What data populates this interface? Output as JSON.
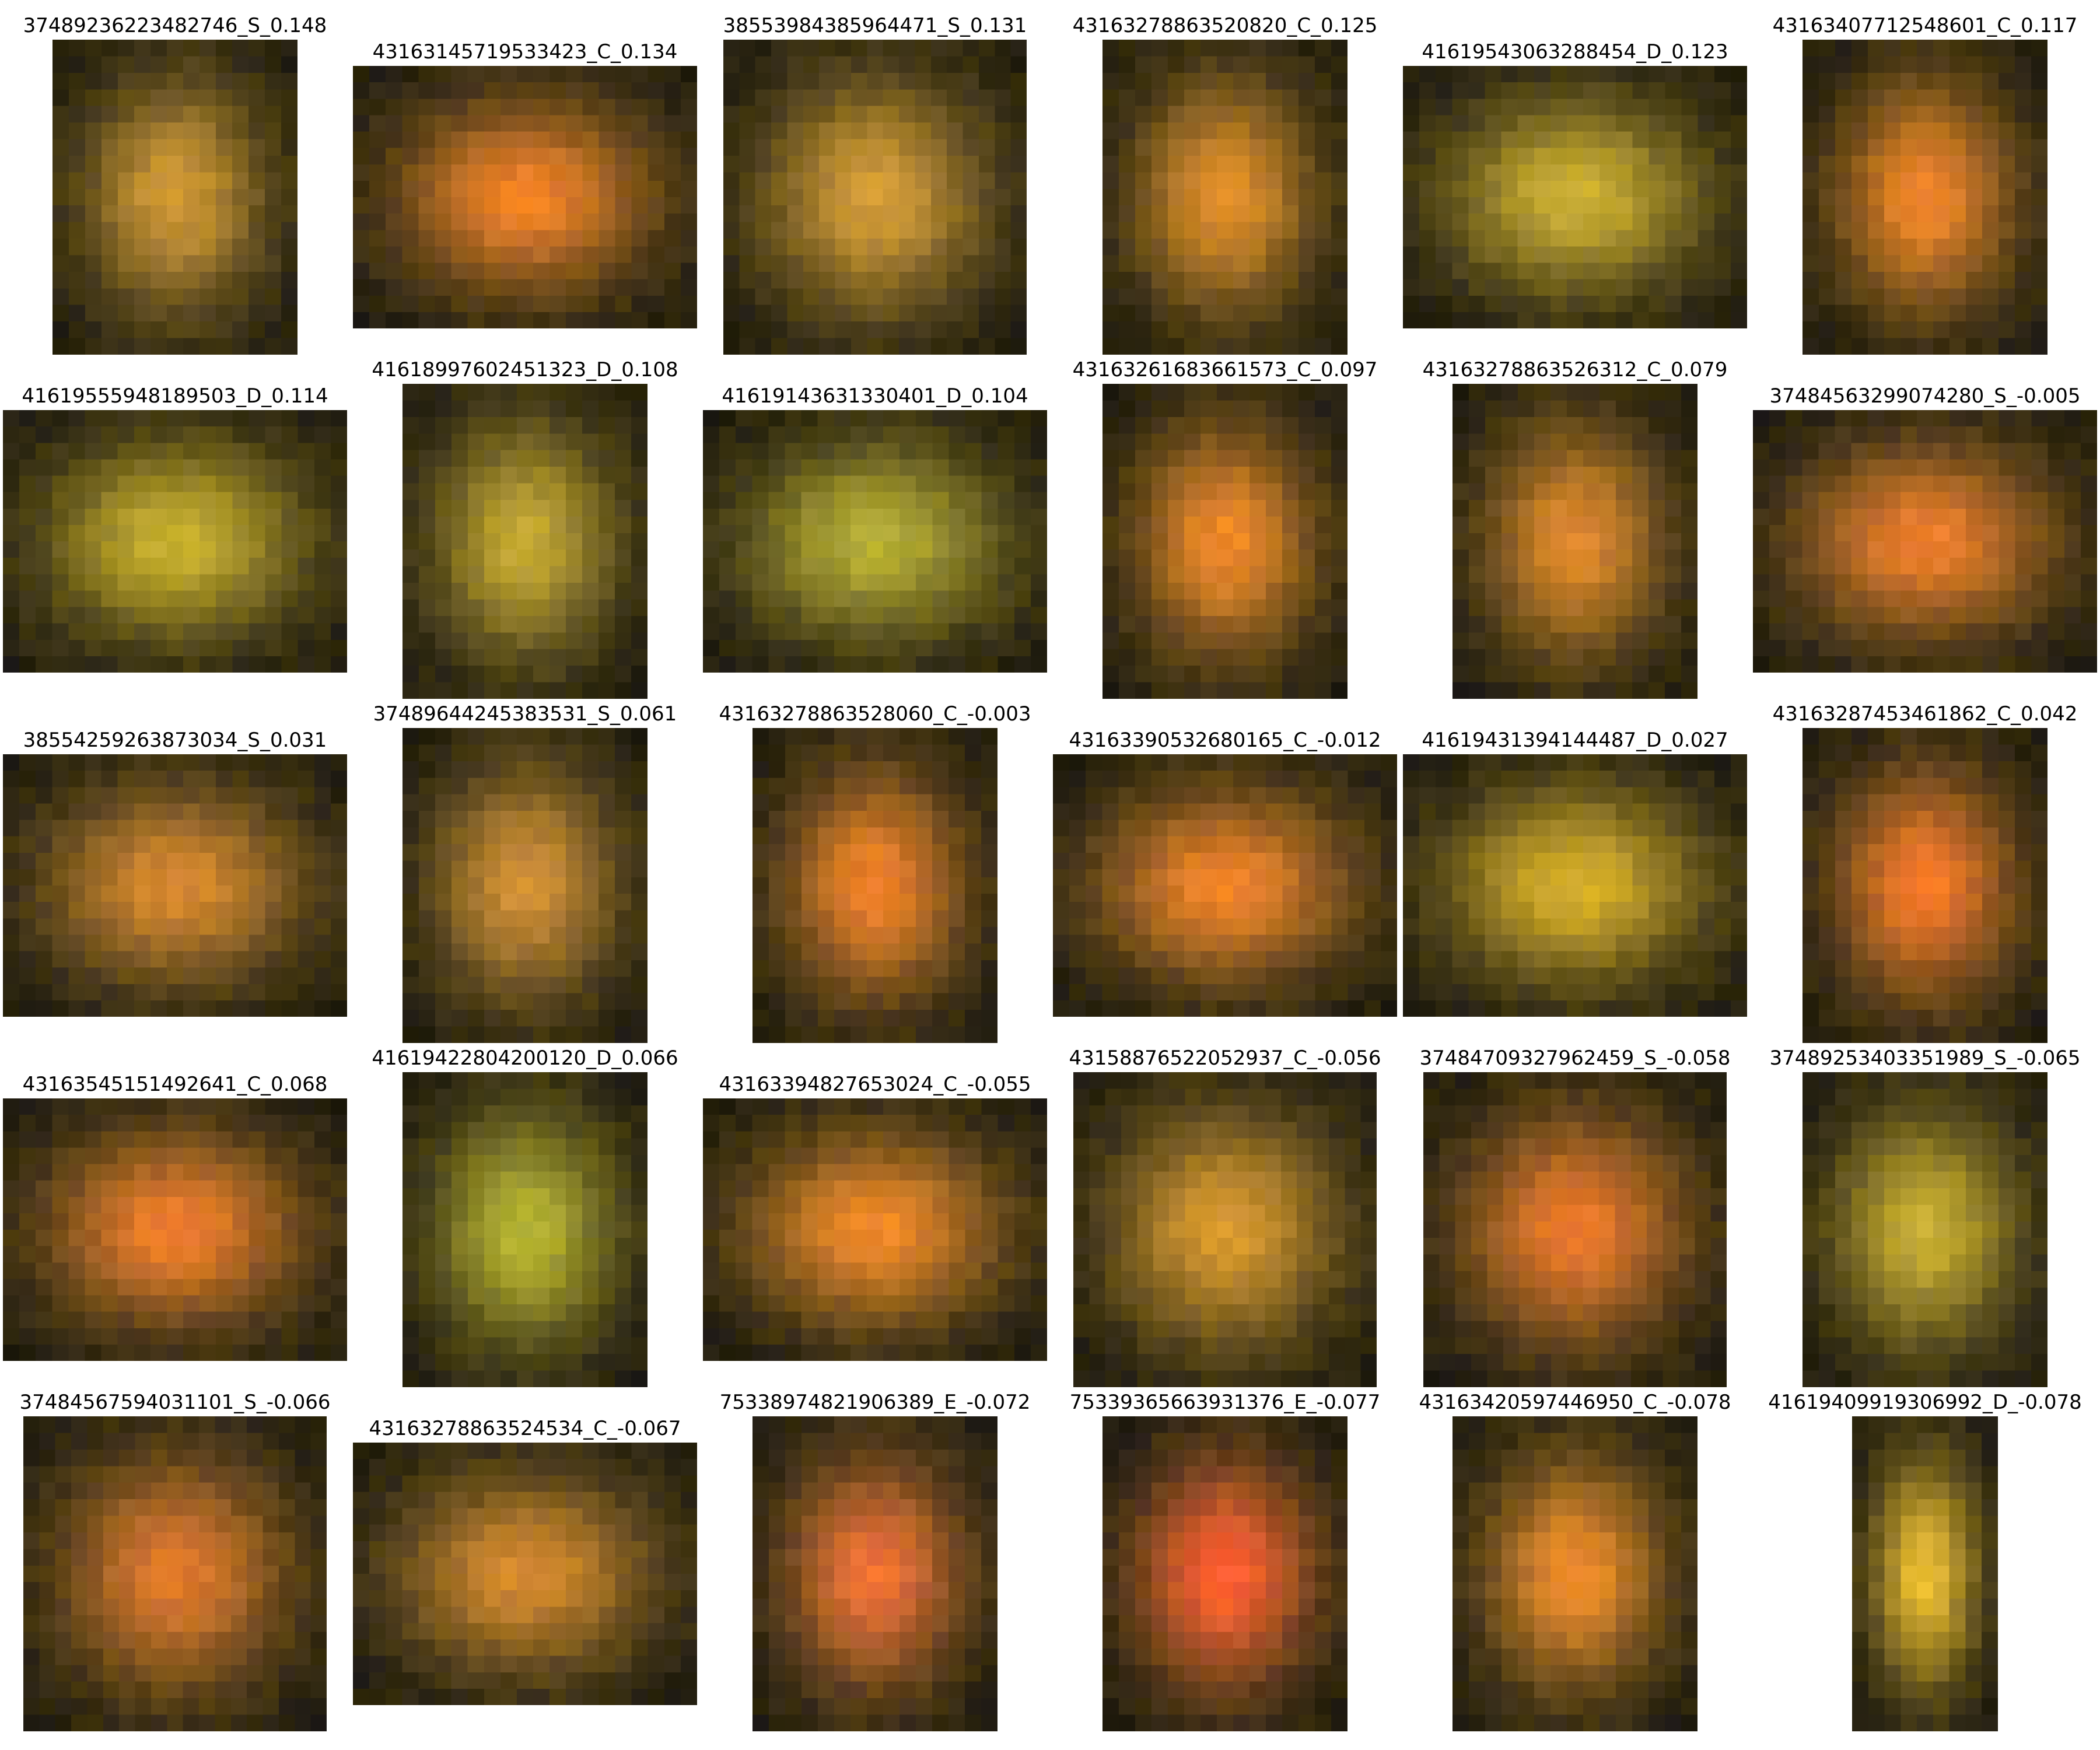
{
  "grid": {
    "rows": 5,
    "cols": 6,
    "panels": [
      {
        "label": "37489236223482746_S_0.148",
        "center_color": "#c08a2c",
        "shape": "tall"
      },
      {
        "label": "43163145719533423_C_0.134",
        "center_color": "#e0711e",
        "shape": "wide"
      },
      {
        "label": "38553984385964471_S_0.131",
        "center_color": "#c28c2e",
        "shape": "square"
      },
      {
        "label": "43163278863520820_C_0.125",
        "center_color": "#d07f22",
        "shape": "tall"
      },
      {
        "label": "41619543063288454_D_0.123",
        "center_color": "#bda22a",
        "shape": "wide"
      },
      {
        "label": "43163407712548601_C_0.117",
        "center_color": "#e0761f",
        "shape": "tall"
      },
      {
        "label": "41619555948189503_D_0.114",
        "center_color": "#b8a224",
        "shape": "wide"
      },
      {
        "label": "41618997602451323_D_0.108",
        "center_color": "#b49a2a",
        "shape": "tall"
      },
      {
        "label": "41619143631330401_D_0.104",
        "center_color": "#a6a02c",
        "shape": "wide"
      },
      {
        "label": "43163261683661573_C_0.097",
        "center_color": "#e07a20",
        "shape": "tall"
      },
      {
        "label": "43163278863526312_C_0.079",
        "center_color": "#d07a22",
        "shape": "tall"
      },
      {
        "label": "37484563299074280_S_-0.005",
        "center_color": "#dc6e22",
        "shape": "wide"
      },
      {
        "label": "38554259263873034_S_0.031",
        "center_color": "#c87a28",
        "shape": "wide"
      },
      {
        "label": "37489644245383531_S_0.061",
        "center_color": "#c2822e",
        "shape": "tall"
      },
      {
        "label": "43163278863528060_C_-0.003",
        "center_color": "#e07220",
        "shape": "tall"
      },
      {
        "label": "43163390532680165_C_-0.012",
        "center_color": "#e07420",
        "shape": "wide"
      },
      {
        "label": "41619431394144487_D_0.027",
        "center_color": "#c6a020",
        "shape": "wide"
      },
      {
        "label": "43163287453461862_C_0.042",
        "center_color": "#e66a20",
        "shape": "tall"
      },
      {
        "label": "43163545151492641_C_0.068",
        "center_color": "#e06e22",
        "shape": "wide"
      },
      {
        "label": "41619422804200120_D_0.066",
        "center_color": "#a6a628",
        "shape": "tall"
      },
      {
        "label": "43163394827653024_C_-0.055",
        "center_color": "#e07a20",
        "shape": "wide"
      },
      {
        "label": "43158876522052937_C_-0.056",
        "center_color": "#c88a28",
        "shape": "square"
      },
      {
        "label": "37484709327962459_S_-0.058",
        "center_color": "#dc6a22",
        "shape": "square"
      },
      {
        "label": "37489253403351989_S_-0.065",
        "center_color": "#b8a02a",
        "shape": "tall"
      },
      {
        "label": "37484567594031101_S_-0.066",
        "center_color": "#d06a24",
        "shape": "square"
      },
      {
        "label": "43163278863524534_C_-0.067",
        "center_color": "#c47a26",
        "shape": "wide"
      },
      {
        "label": "75338974821906389_E_-0.072",
        "center_color": "#e0622c",
        "shape": "tall"
      },
      {
        "label": "75339365663931376_E_-0.077",
        "center_color": "#f05026",
        "shape": "tall"
      },
      {
        "label": "43163420597446950_C_-0.078",
        "center_color": "#e07e20",
        "shape": "tall"
      },
      {
        "label": "41619409919306992_D_-0.078",
        "center_color": "#dcb028",
        "shape": "thin"
      }
    ]
  }
}
